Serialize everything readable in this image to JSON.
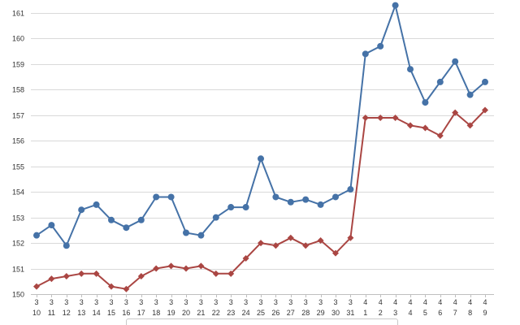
{
  "chart_data": {
    "type": "line",
    "ylim": [
      150,
      161
    ],
    "yticks": [
      "150",
      "151",
      "152",
      "153",
      "154",
      "155",
      "156",
      "157",
      "158",
      "159",
      "160",
      "161"
    ],
    "grid": true,
    "legend": "bottom",
    "categories": [
      {
        "month": "3",
        "day": "10"
      },
      {
        "month": "3",
        "day": "11"
      },
      {
        "month": "3",
        "day": "12"
      },
      {
        "month": "3",
        "day": "13"
      },
      {
        "month": "3",
        "day": "14"
      },
      {
        "month": "3",
        "day": "15"
      },
      {
        "month": "3",
        "day": "16"
      },
      {
        "month": "3",
        "day": "17"
      },
      {
        "month": "3",
        "day": "18"
      },
      {
        "month": "3",
        "day": "19"
      },
      {
        "month": "3",
        "day": "20"
      },
      {
        "month": "3",
        "day": "21"
      },
      {
        "month": "3",
        "day": "22"
      },
      {
        "month": "3",
        "day": "23"
      },
      {
        "month": "3",
        "day": "24"
      },
      {
        "month": "3",
        "day": "25"
      },
      {
        "month": "3",
        "day": "26"
      },
      {
        "month": "3",
        "day": "27"
      },
      {
        "month": "3",
        "day": "28"
      },
      {
        "month": "3",
        "day": "29"
      },
      {
        "month": "3",
        "day": "30"
      },
      {
        "month": "3",
        "day": "31"
      },
      {
        "month": "4",
        "day": "1"
      },
      {
        "month": "4",
        "day": "2"
      },
      {
        "month": "4",
        "day": "3"
      },
      {
        "month": "4",
        "day": "4"
      },
      {
        "month": "4",
        "day": "5"
      },
      {
        "month": "4",
        "day": "6"
      },
      {
        "month": "4",
        "day": "7"
      },
      {
        "month": "4",
        "day": "8"
      },
      {
        "month": "4",
        "day": "9"
      }
    ],
    "series": [
      {
        "color": "#4572a7",
        "marker": "circle",
        "values": [
          152.3,
          152.7,
          151.9,
          153.3,
          153.5,
          152.9,
          152.6,
          152.9,
          153.8,
          153.8,
          152.4,
          152.3,
          153.0,
          153.4,
          153.4,
          155.3,
          153.8,
          153.6,
          153.7,
          153.5,
          153.8,
          154.1,
          159.4,
          159.7,
          161.3,
          158.8,
          157.5,
          158.3,
          159.1,
          157.8,
          158.3
        ]
      },
      {
        "color": "#aa4643",
        "marker": "diamond",
        "values": [
          150.3,
          150.6,
          150.7,
          150.8,
          150.8,
          150.3,
          150.2,
          150.7,
          151.0,
          151.1,
          151.0,
          151.1,
          150.8,
          150.8,
          151.4,
          152.0,
          151.9,
          152.2,
          151.9,
          152.1,
          151.6,
          152.2,
          156.9,
          156.9,
          156.9,
          156.6,
          156.5,
          156.2,
          157.1,
          156.6,
          157.2
        ]
      }
    ]
  }
}
